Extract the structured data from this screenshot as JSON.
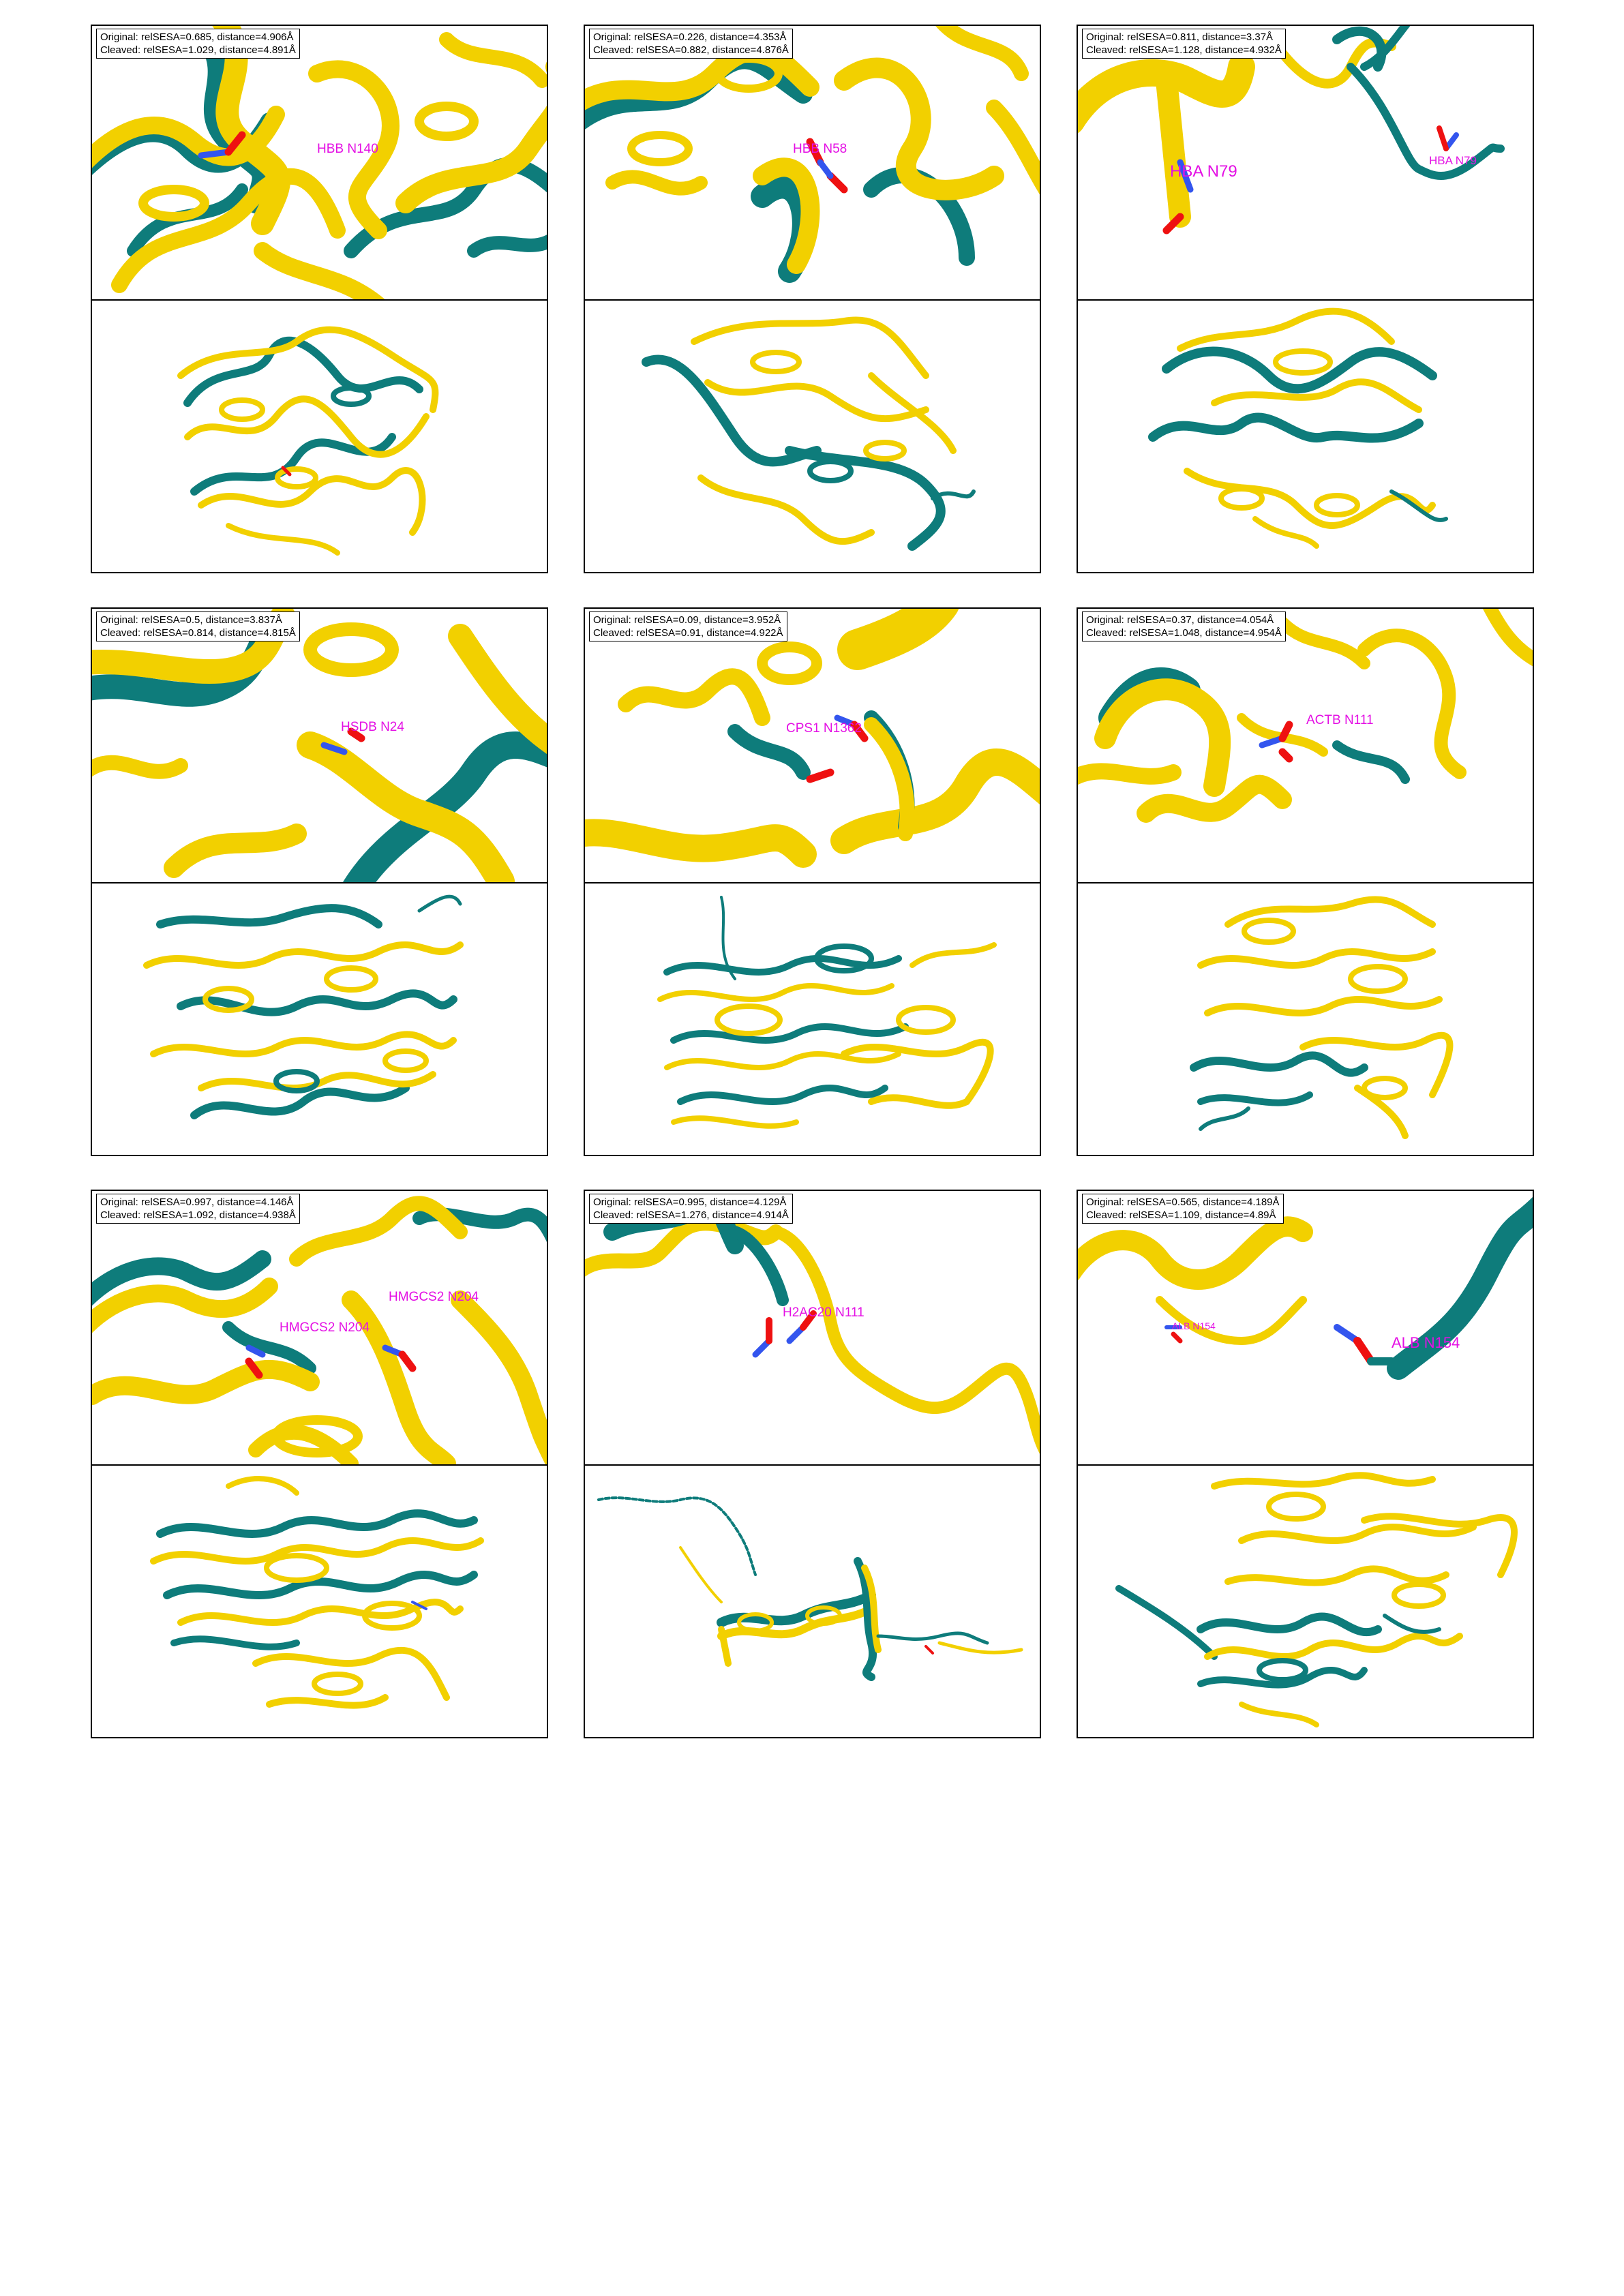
{
  "colors": {
    "original": "#0e7c7b",
    "cleaved": "#f2d000",
    "label": "#e410e4",
    "oxygen": "#ee1111",
    "nitrogen": "#3355ee"
  },
  "panels": [
    {
      "original": "Original: relSESA=0.685, distance=4.906Å",
      "cleaved": "Cleaved: relSESA=1.029, distance=4.891Å",
      "labels": [
        "HBB N140"
      ]
    },
    {
      "original": "Original: relSESA=0.226, distance=4.353Å",
      "cleaved": "Cleaved: relSESA=0.882, distance=4.876Å",
      "labels": [
        "HBB N58"
      ]
    },
    {
      "original": "Original: relSESA=0.811, distance=3.37Å",
      "cleaved": "Cleaved: relSESA=1.128, distance=4.932Å",
      "labels": [
        "HBA N79",
        "HBA N79"
      ]
    },
    {
      "original": "Original: relSESA=0.5, distance=3.837Å",
      "cleaved": "Cleaved: relSESA=0.814, distance=4.815Å",
      "labels": [
        "HSDB N24"
      ]
    },
    {
      "original": "Original: relSESA=0.09, distance=3.952Å",
      "cleaved": "Cleaved: relSESA=0.91, distance=4.922Å",
      "labels": [
        "CPS1 N1362"
      ]
    },
    {
      "original": "Original: relSESA=0.37, distance=4.054Å",
      "cleaved": "Cleaved: relSESA=1.048, distance=4.954Å",
      "labels": [
        "ACTB N111"
      ]
    },
    {
      "original": "Original: relSESA=0.997, distance=4.146Å",
      "cleaved": "Cleaved: relSESA=1.092, distance=4.938Å",
      "labels": [
        "HMGCS2 N204",
        "HMGCS2 N204"
      ]
    },
    {
      "original": "Original: relSESA=0.995, distance=4.129Å",
      "cleaved": "Cleaved: relSESA=1.276, distance=4.914Å",
      "labels": [
        "H2AC20 N111"
      ]
    },
    {
      "original": "Original: relSESA=0.565, distance=4.189Å",
      "cleaved": "Cleaved: relSESA=1.109, distance=4.89Å",
      "labels": [
        "ALB N154",
        "ALB N154"
      ]
    }
  ]
}
